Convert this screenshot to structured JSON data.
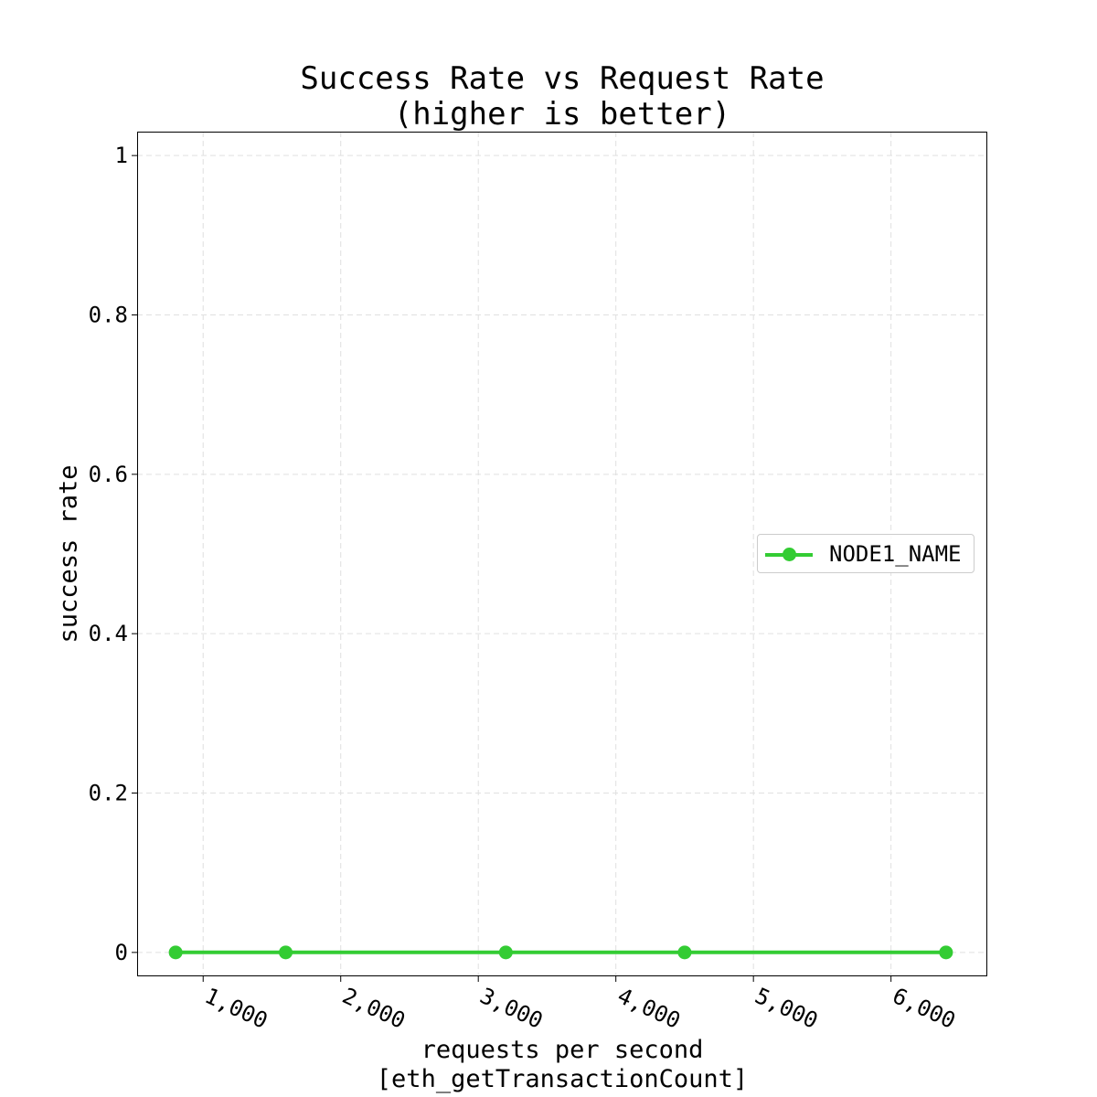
{
  "chart_data": {
    "type": "line",
    "title_lines": [
      "Success Rate vs Request Rate",
      "(higher is better)"
    ],
    "xlabel_lines": [
      "requests per second",
      "[eth_getTransactionCount]"
    ],
    "ylabel": "success rate",
    "x_ticks": [
      1000,
      2000,
      3000,
      4000,
      5000,
      6000
    ],
    "x_tick_labels": [
      "1,000",
      "2,000",
      "3,000",
      "4,000",
      "5,000",
      "6,000"
    ],
    "y_ticks": [
      0,
      0.2,
      0.4,
      0.6,
      0.8,
      1
    ],
    "y_tick_labels": [
      "0",
      "0.2",
      "0.4",
      "0.6",
      "0.8",
      "1"
    ],
    "xlim": [
      520,
      6700
    ],
    "ylim": [
      -0.03,
      1.03
    ],
    "grid": true,
    "legend_position": "center-right",
    "series": [
      {
        "name": "NODE1_NAME",
        "color": "#33cc33",
        "marker": "circle",
        "x": [
          800,
          1600,
          3200,
          4500,
          6400
        ],
        "y": [
          0,
          0,
          0,
          0,
          0
        ]
      }
    ]
  }
}
